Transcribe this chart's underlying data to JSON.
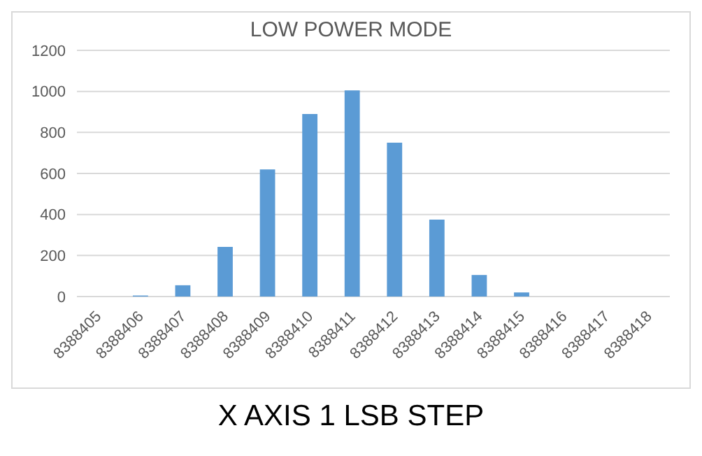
{
  "chart_data": {
    "type": "bar",
    "title": "LOW POWER MODE",
    "xlabel": "X AXIS 1 LSB STEP",
    "categories": [
      "8388405",
      "8388406",
      "8388407",
      "8388408",
      "8388409",
      "8388410",
      "8388411",
      "8388412",
      "8388413",
      "8388414",
      "8388415",
      "8388416",
      "8388417",
      "8388418"
    ],
    "values": [
      0,
      5,
      55,
      242,
      620,
      890,
      1005,
      750,
      375,
      105,
      20,
      0,
      0,
      0
    ],
    "color": "#5b9bd5",
    "ylim": [
      0,
      1200
    ],
    "yticks": [
      0,
      200,
      400,
      600,
      800,
      1000,
      1200
    ],
    "grid": "y",
    "legend": false
  }
}
